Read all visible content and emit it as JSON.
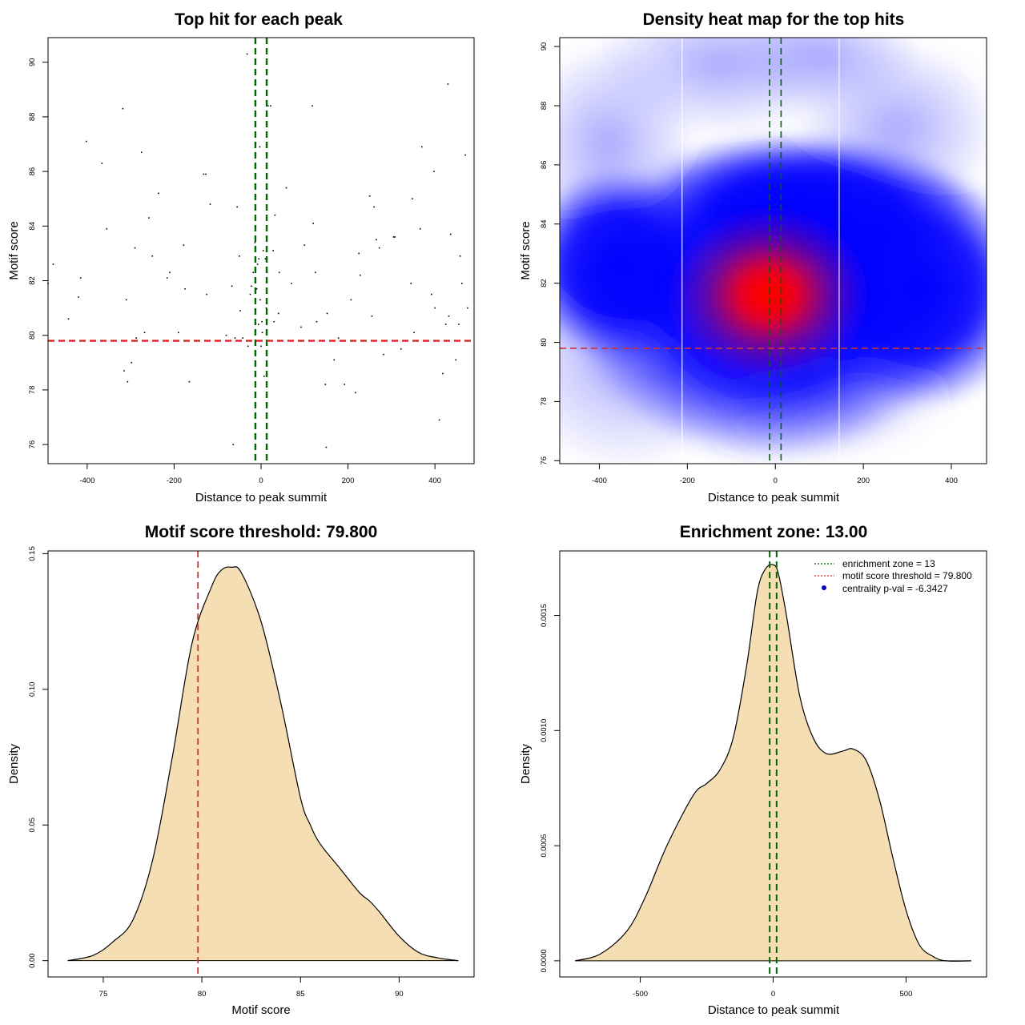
{
  "chart_data": [
    {
      "type": "scatter",
      "title": "Top hit for each peak",
      "xlabel": "Distance to peak summit",
      "ylabel": "Motif score",
      "xlim": [
        -490,
        490
      ],
      "ylim": [
        75.3,
        90.9
      ],
      "xticks": [
        -400,
        -200,
        0,
        200,
        400
      ],
      "yticks": [
        76,
        78,
        80,
        82,
        84,
        86,
        88,
        90
      ],
      "hlines": [
        {
          "y": 79.8,
          "color": "#dd2222",
          "style": "dashed"
        }
      ],
      "vlines": [
        {
          "x": -13,
          "color": "#006400",
          "style": "dashed"
        },
        {
          "x": 13,
          "color": "#006400",
          "style": "dashed"
        }
      ],
      "points": [
        [
          -490,
          81.9
        ],
        [
          -478,
          82.6
        ],
        [
          -443,
          80.6
        ],
        [
          -420,
          81.4
        ],
        [
          -415,
          82.1
        ],
        [
          -402,
          87.1
        ],
        [
          -366,
          86.3
        ],
        [
          -355,
          83.9
        ],
        [
          -318,
          88.3
        ],
        [
          -315,
          78.7
        ],
        [
          -310,
          81.3
        ],
        [
          -307,
          78.3
        ],
        [
          -298,
          79.0
        ],
        [
          -290,
          83.2
        ],
        [
          -287,
          79.9
        ],
        [
          -275,
          86.7
        ],
        [
          -268,
          80.1
        ],
        [
          -258,
          84.3
        ],
        [
          -250,
          82.9
        ],
        [
          -236,
          85.2
        ],
        [
          -216,
          82.1
        ],
        [
          -210,
          82.3
        ],
        [
          -190,
          80.1
        ],
        [
          -178,
          83.3
        ],
        [
          -175,
          81.7
        ],
        [
          -165,
          78.3
        ],
        [
          -132,
          85.9
        ],
        [
          -127,
          85.9
        ],
        [
          -125,
          81.5
        ],
        [
          -117,
          84.8
        ],
        [
          -80,
          80.0
        ],
        [
          -67,
          81.8
        ],
        [
          -64,
          76.0
        ],
        [
          -60,
          79.9
        ],
        [
          -55,
          84.7
        ],
        [
          -50,
          82.9
        ],
        [
          -48,
          80.9
        ],
        [
          -42,
          79.9
        ],
        [
          -32,
          90.3
        ],
        [
          -30,
          79.6
        ],
        [
          -25,
          81.5
        ],
        [
          -22,
          81.8
        ],
        [
          -18,
          82.3
        ],
        [
          -14,
          83.4
        ],
        [
          -12,
          79.8
        ],
        [
          -10,
          81.7
        ],
        [
          -8,
          82.6
        ],
        [
          -6,
          80.4
        ],
        [
          -5,
          82.8
        ],
        [
          -3,
          86.9
        ],
        [
          -2,
          81.3
        ],
        [
          0,
          79.6
        ],
        [
          2,
          80.5
        ],
        [
          3,
          80.1
        ],
        [
          5,
          83.1
        ],
        [
          7,
          78.5
        ],
        [
          10,
          82.8
        ],
        [
          12,
          81.0
        ],
        [
          14,
          82.3
        ],
        [
          16,
          88.4
        ],
        [
          22,
          88.4
        ],
        [
          28,
          83.1
        ],
        [
          30,
          80.5
        ],
        [
          32,
          84.4
        ],
        [
          40,
          80.8
        ],
        [
          42,
          82.3
        ],
        [
          58,
          85.4
        ],
        [
          70,
          81.9
        ],
        [
          92,
          80.3
        ],
        [
          100,
          83.3
        ],
        [
          118,
          88.4
        ],
        [
          120,
          84.1
        ],
        [
          125,
          82.3
        ],
        [
          128,
          80.5
        ],
        [
          148,
          78.2
        ],
        [
          150,
          75.9
        ],
        [
          152,
          80.8
        ],
        [
          168,
          79.1
        ],
        [
          178,
          79.9
        ],
        [
          192,
          78.2
        ],
        [
          207,
          81.3
        ],
        [
          217,
          77.9
        ],
        [
          225,
          83.0
        ],
        [
          228,
          82.2
        ],
        [
          250,
          85.1
        ],
        [
          255,
          80.7
        ],
        [
          260,
          84.7
        ],
        [
          265,
          83.5
        ],
        [
          272,
          83.2
        ],
        [
          282,
          79.3
        ],
        [
          305,
          83.6
        ],
        [
          308,
          83.6
        ],
        [
          322,
          79.5
        ],
        [
          345,
          81.9
        ],
        [
          348,
          85.0
        ],
        [
          352,
          80.1
        ],
        [
          366,
          83.9
        ],
        [
          370,
          86.9
        ],
        [
          392,
          81.5
        ],
        [
          398,
          86.0
        ],
        [
          400,
          81.0
        ],
        [
          410,
          76.9
        ],
        [
          418,
          78.6
        ],
        [
          425,
          80.4
        ],
        [
          430,
          89.2
        ],
        [
          432,
          80.7
        ],
        [
          436,
          83.7
        ],
        [
          448,
          79.1
        ],
        [
          455,
          80.4
        ],
        [
          458,
          82.9
        ],
        [
          462,
          81.9
        ],
        [
          470,
          86.6
        ],
        [
          475,
          81.0
        ]
      ]
    },
    {
      "type": "heatmap",
      "title": "Density heat map for the top hits",
      "xlabel": "Distance to peak summit",
      "ylabel": "Motif score",
      "xlim": [
        -490,
        480
      ],
      "ylim": [
        75.9,
        90.3
      ],
      "xticks": [
        -400,
        -200,
        0,
        200,
        400
      ],
      "yticks": [
        76,
        78,
        80,
        82,
        84,
        86,
        88,
        90
      ],
      "colors": [
        "#ffffff",
        "#0000ff",
        "#ff0000"
      ],
      "hlines": [
        {
          "y": 79.8,
          "color": "#cc3333",
          "style": "dashed"
        }
      ],
      "vlines": [
        {
          "x": -13,
          "color": "#006400",
          "style": "dashed"
        },
        {
          "x": 13,
          "color": "#006400",
          "style": "dashed"
        }
      ],
      "white_vlines": [
        -212,
        145
      ]
    },
    {
      "type": "area",
      "title": "Motif score threshold: 79.800",
      "xlabel": "Motif score",
      "ylabel": "Density",
      "xlim": [
        72.2,
        93.8
      ],
      "ylim": [
        -0.006,
        0.151
      ],
      "xticks": [
        75,
        80,
        85,
        90
      ],
      "yticks": [
        0.0,
        0.05,
        0.1,
        0.15
      ],
      "ytick_labels": [
        "0.00",
        "0.05",
        "0.10",
        "0.15"
      ],
      "fill": "#f5deb3",
      "vlines": [
        {
          "x": 79.8,
          "color": "#cc3333",
          "style": "dashed"
        }
      ],
      "x": [
        73.2,
        74.5,
        75.5,
        76.5,
        77.5,
        78.5,
        79.5,
        80.5,
        81.0,
        81.5,
        82.0,
        83.0,
        84.0,
        85.0,
        85.5,
        86.0,
        87.0,
        88.0,
        88.5,
        89.0,
        90.0,
        91.0,
        92.0,
        93.0
      ],
      "y": [
        0.0,
        0.002,
        0.007,
        0.015,
        0.037,
        0.075,
        0.117,
        0.138,
        0.144,
        0.145,
        0.143,
        0.125,
        0.095,
        0.06,
        0.05,
        0.043,
        0.034,
        0.025,
        0.022,
        0.018,
        0.009,
        0.003,
        0.001,
        0.0
      ]
    },
    {
      "type": "area",
      "title": "Enrichment zone: 13.00",
      "xlabel": "Distance to peak summit",
      "ylabel": "Density",
      "xlim": [
        -803,
        803
      ],
      "ylim": [
        -7e-05,
        0.00178
      ],
      "xticks": [
        -500,
        0,
        500
      ],
      "yticks": [
        0.0,
        0.0005,
        0.001,
        0.0015
      ],
      "ytick_labels": [
        "0.0000",
        "0.0005",
        "0.0010",
        "0.0015"
      ],
      "fill": "#f5deb3",
      "vlines": [
        {
          "x": -13,
          "color": "#006400",
          "style": "dashed"
        },
        {
          "x": 13,
          "color": "#006400",
          "style": "dashed"
        }
      ],
      "x": [
        -745,
        -650,
        -550,
        -480,
        -400,
        -300,
        -250,
        -200,
        -150,
        -100,
        -60,
        -30,
        0,
        20,
        50,
        100,
        150,
        200,
        260,
        300,
        350,
        400,
        450,
        500,
        550,
        600,
        650,
        745
      ],
      "y": [
        0.0,
        3e-05,
        0.00013,
        0.00028,
        0.0005,
        0.00072,
        0.00077,
        0.00083,
        0.00097,
        0.00128,
        0.0016,
        0.0017,
        0.00172,
        0.00168,
        0.0015,
        0.00115,
        0.00097,
        0.0009,
        0.00091,
        0.00092,
        0.00087,
        0.0007,
        0.00045,
        0.00022,
        7e-05,
        2e-05,
        0.0,
        0.0
      ],
      "legend": {
        "position": "top-right",
        "entries": [
          {
            "label": "enrichment zone = 13",
            "color": "#006400",
            "kind": "dotted-line"
          },
          {
            "label": "motif score threshold = 79.800",
            "color": "#dd2222",
            "kind": "dotted-line"
          },
          {
            "label": "centrality p-val = -6.3427",
            "color": "#0000cc",
            "kind": "point"
          }
        ]
      }
    }
  ]
}
